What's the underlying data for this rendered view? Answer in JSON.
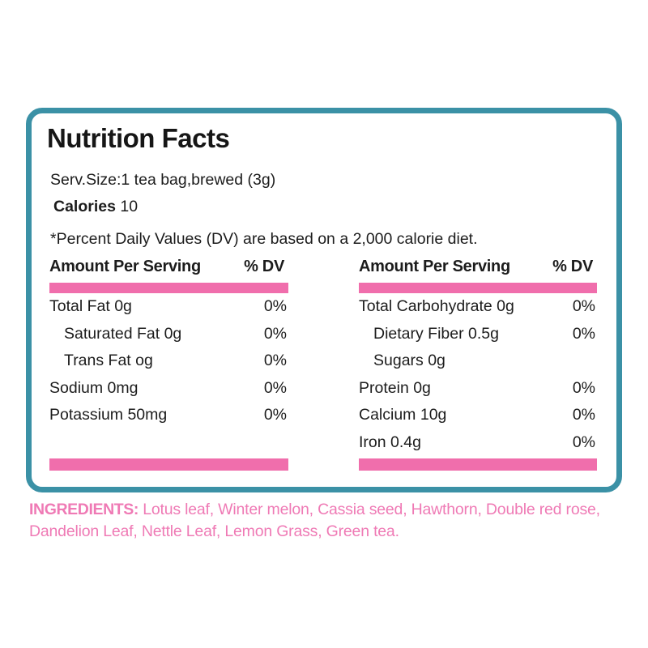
{
  "label": {
    "title": "Nutrition Facts",
    "serving": "Serv.Size:1 tea bag,brewed (3g)",
    "calories_label": "Calories",
    "calories_value": "10",
    "footnote": "*Percent Daily Values (DV) are based on a 2,000 calorie diet.",
    "header_amount": "Amount Per Serving",
    "header_dv": "% DV",
    "left_rows": [
      {
        "name": "Total Fat 0g",
        "dv": "0%"
      },
      {
        "name": "Saturated Fat 0g",
        "dv": "0%"
      },
      {
        "name": "Trans Fat og",
        "dv": "0%"
      },
      {
        "name": "Sodium 0mg",
        "dv": "0%"
      },
      {
        "name": "Potassium 50mg",
        "dv": "0%"
      }
    ],
    "right_rows": [
      {
        "name": "Total Carbohydrate 0g",
        "dv": "0%"
      },
      {
        "name": "Dietary Fiber 0.5g",
        "dv": "0%"
      },
      {
        "name": "Sugars 0g",
        "dv": ""
      },
      {
        "name": "Protein 0g",
        "dv": "0%"
      },
      {
        "name": "Calcium 10g",
        "dv": "0%"
      },
      {
        "name": "Iron 0.4g",
        "dv": "0%"
      }
    ],
    "ingredients_label": "INGREDIENTS:",
    "ingredients_text": "Lotus leaf, Winter melon, Cassia seed, Hawthorn, Double red rose, Dandelion Leaf, Nettle Leaf, Lemon Grass, Green tea.",
    "colors": {
      "border_teal": "#3B91A6",
      "bar_pink": "#F06EAC",
      "ingredients_pink": "#EF7AB5",
      "text": "#1c1c1c"
    }
  }
}
